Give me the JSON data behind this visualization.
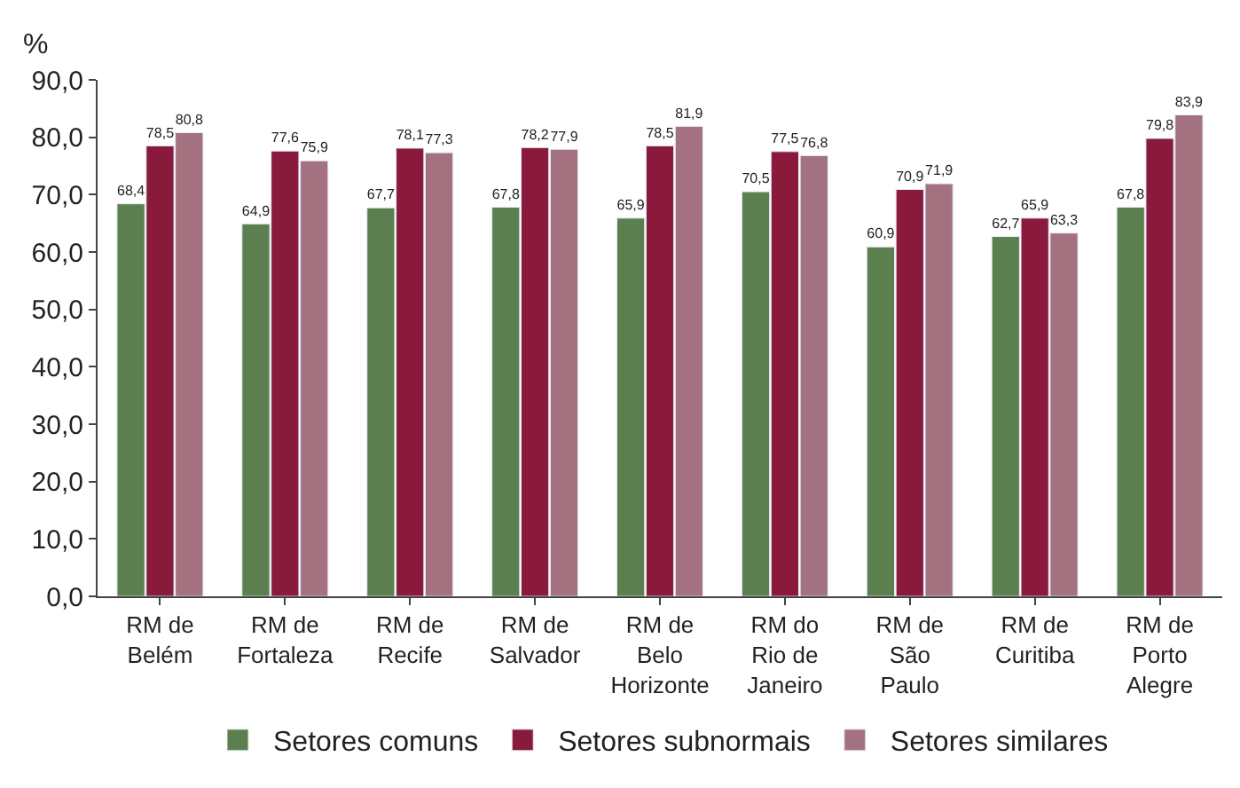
{
  "chart_data": {
    "type": "bar",
    "ylabel": "%",
    "categories": [
      "RM de\nBelém",
      "RM de\nFortaleza",
      "RM de\nRecife",
      "RM de\nSalvador",
      "RM de\nBelo\nHorizonte",
      "RM do\nRio de\nJaneiro",
      "RM de\nSão\nPaulo",
      "RM de\nCuritiba",
      "RM de\nPorto\nAlegre"
    ],
    "series": [
      {
        "name": "Setores comuns",
        "color": "#5b7f4f",
        "values": [
          68.4,
          64.9,
          67.7,
          67.8,
          65.9,
          70.5,
          60.9,
          62.7,
          67.8
        ],
        "value_labels": [
          "68,4",
          "64,9",
          "67,7",
          "67,8",
          "65,9",
          "70,5",
          "60,9",
          "62,7",
          "67,8"
        ]
      },
      {
        "name": "Setores subnormais",
        "color": "#8a1a3b",
        "values": [
          78.5,
          77.6,
          78.1,
          78.2,
          78.5,
          77.5,
          70.9,
          65.9,
          79.8
        ],
        "value_labels": [
          "78,5",
          "77,6",
          "78,1",
          "78,2",
          "78,5",
          "77,5",
          "70,9",
          "65,9",
          "79,8"
        ]
      },
      {
        "name": "Setores similares",
        "color": "#a3717f",
        "values": [
          80.8,
          75.9,
          77.3,
          77.9,
          81.9,
          76.8,
          71.9,
          63.3,
          83.9
        ],
        "value_labels": [
          "80,8",
          "75,9",
          "77,3",
          "77,9",
          "81,9",
          "76,8",
          "71,9",
          "63,3",
          "83,9"
        ]
      }
    ],
    "ylim": [
      0,
      90
    ],
    "yticks": [
      {
        "value": 0,
        "label": "0,0"
      },
      {
        "value": 10,
        "label": "10,0"
      },
      {
        "value": 20,
        "label": "20,0"
      },
      {
        "value": 30,
        "label": "30,0"
      },
      {
        "value": 40,
        "label": "40,0"
      },
      {
        "value": 50,
        "label": "50,0"
      },
      {
        "value": 60,
        "label": "60,0"
      },
      {
        "value": 70,
        "label": "70,0"
      },
      {
        "value": 80,
        "label": "80,0"
      },
      {
        "value": 90,
        "label": "90,0"
      }
    ],
    "grid": false,
    "legend": "bottom"
  }
}
